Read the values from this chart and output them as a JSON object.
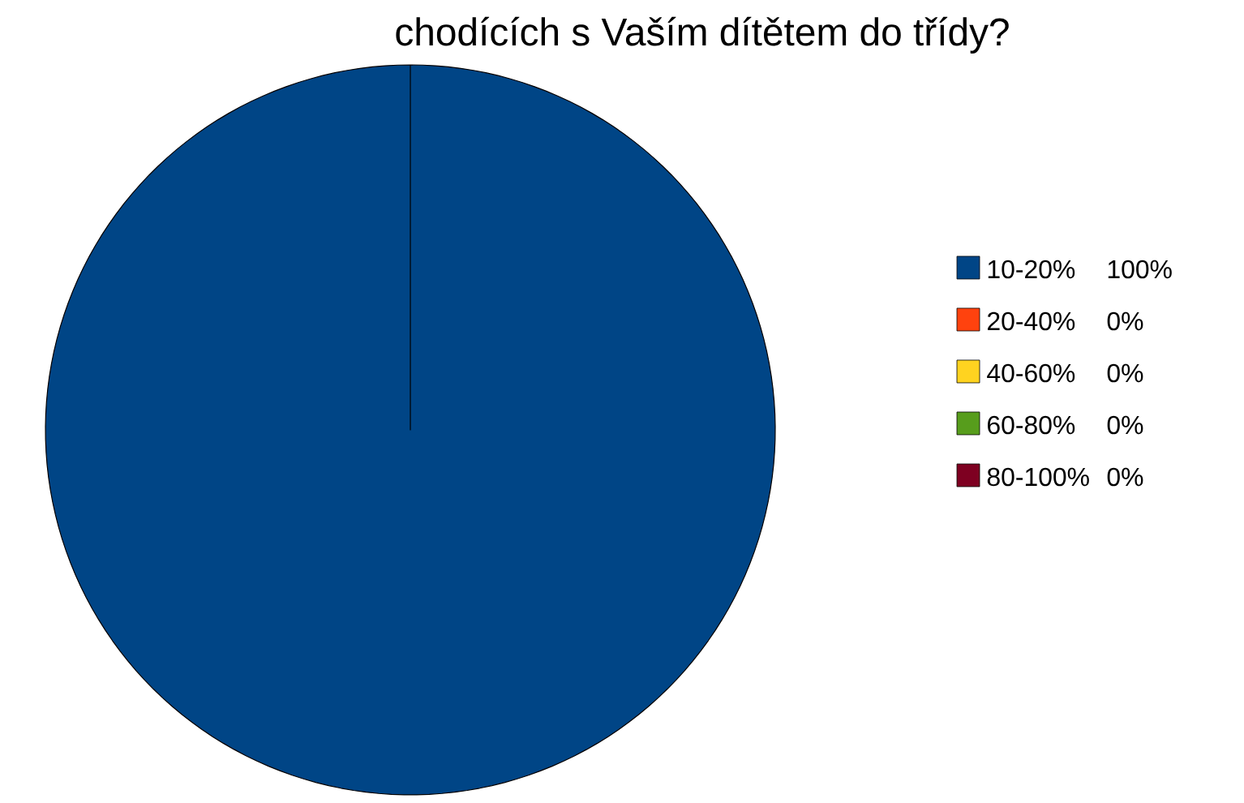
{
  "chart_data": {
    "type": "pie",
    "title": "chodících s Vaším dítětem do třídy?",
    "categories": [
      "10-20%",
      "20-40%",
      "40-60%",
      "60-80%",
      "80-100%"
    ],
    "values": [
      100,
      0,
      0,
      0,
      0
    ],
    "value_labels": [
      "100%",
      "0%",
      "0%",
      "0%",
      "0%"
    ],
    "colors": [
      "#004586",
      "#ff420e",
      "#ffd320",
      "#579d1c",
      "#7e0021"
    ],
    "legend": "right"
  }
}
